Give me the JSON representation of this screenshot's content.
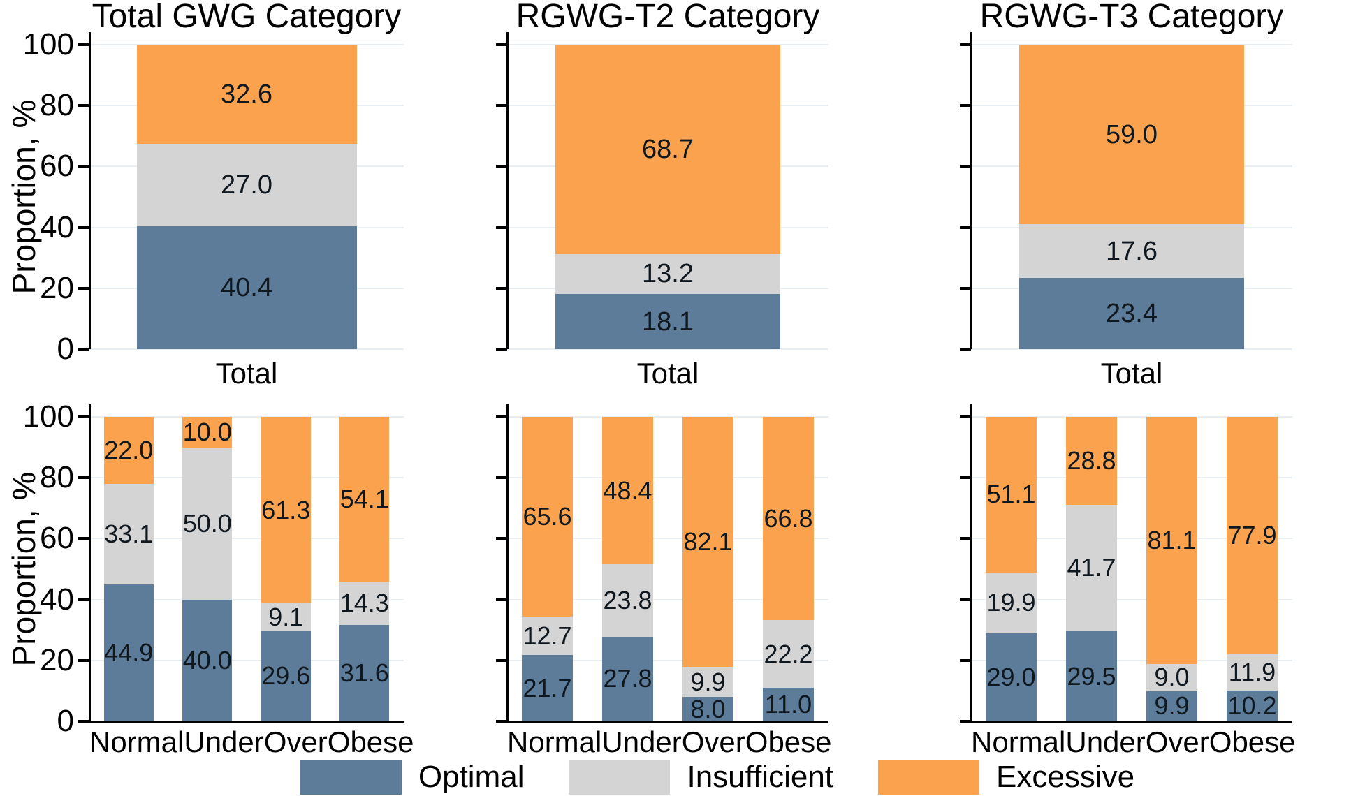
{
  "colors": {
    "optimal": "#5C7C99",
    "insufficient": "#D4D4D4",
    "excessive": "#FBA24E",
    "gridline": "#E8EEF1",
    "axis": "#000000",
    "value_label": "#10181F",
    "background": "#FFFFFF"
  },
  "axis": {
    "ylabel": "Proportion, %",
    "yticks": [
      0,
      20,
      40,
      60,
      80,
      100
    ],
    "ylim": [
      0,
      100
    ],
    "grid": "horizontal"
  },
  "legend": {
    "position": "bottom",
    "items": [
      {
        "label": "Optimal",
        "color": "optimal"
      },
      {
        "label": "Insufficient",
        "color": "insufficient"
      },
      {
        "label": "Excessive",
        "color": "excessive"
      }
    ]
  },
  "chart_data": [
    {
      "type": "bar",
      "stacked": true,
      "title": "Total GWG Category",
      "xlabel": "",
      "ylabel": "Proportion, %",
      "ylim": [
        0,
        100
      ],
      "categories": [
        "Total"
      ],
      "series": [
        {
          "name": "Optimal",
          "color": "optimal",
          "values": [
            40.4
          ]
        },
        {
          "name": "Insufficient",
          "color": "insufficient",
          "values": [
            27.0
          ]
        },
        {
          "name": "Excessive",
          "color": "excessive",
          "values": [
            32.6
          ]
        }
      ]
    },
    {
      "type": "bar",
      "stacked": true,
      "title": "RGWG-T2 Category",
      "xlabel": "",
      "ylabel": "",
      "ylim": [
        0,
        100
      ],
      "categories": [
        "Total"
      ],
      "series": [
        {
          "name": "Optimal",
          "color": "optimal",
          "values": [
            18.1
          ]
        },
        {
          "name": "Insufficient",
          "color": "insufficient",
          "values": [
            13.2
          ]
        },
        {
          "name": "Excessive",
          "color": "excessive",
          "values": [
            68.7
          ]
        }
      ]
    },
    {
      "type": "bar",
      "stacked": true,
      "title": "RGWG-T3 Category",
      "xlabel": "",
      "ylabel": "",
      "ylim": [
        0,
        100
      ],
      "categories": [
        "Total"
      ],
      "series": [
        {
          "name": "Optimal",
          "color": "optimal",
          "values": [
            23.4
          ]
        },
        {
          "name": "Insufficient",
          "color": "insufficient",
          "values": [
            17.6
          ]
        },
        {
          "name": "Excessive",
          "color": "excessive",
          "values": [
            59.0
          ]
        }
      ]
    },
    {
      "type": "bar",
      "stacked": true,
      "title": "",
      "xlabel": "",
      "ylabel": "Proportion, %",
      "ylim": [
        0,
        100
      ],
      "categories": [
        "Normal",
        "Under",
        "Over",
        "Obese"
      ],
      "series": [
        {
          "name": "Optimal",
          "color": "optimal",
          "values": [
            44.9,
            40.0,
            29.6,
            31.6
          ]
        },
        {
          "name": "Insufficient",
          "color": "insufficient",
          "values": [
            33.1,
            50.0,
            9.1,
            14.3
          ]
        },
        {
          "name": "Excessive",
          "color": "excessive",
          "values": [
            22.0,
            10.0,
            61.3,
            54.1
          ]
        }
      ]
    },
    {
      "type": "bar",
      "stacked": true,
      "title": "",
      "xlabel": "",
      "ylabel": "",
      "ylim": [
        0,
        100
      ],
      "categories": [
        "Normal",
        "Under",
        "Over",
        "Obese"
      ],
      "series": [
        {
          "name": "Optimal",
          "color": "optimal",
          "values": [
            21.7,
            27.8,
            8.0,
            11.0
          ]
        },
        {
          "name": "Insufficient",
          "color": "insufficient",
          "values": [
            12.7,
            23.8,
            9.9,
            22.2
          ]
        },
        {
          "name": "Excessive",
          "color": "excessive",
          "values": [
            65.6,
            48.4,
            82.1,
            66.8
          ]
        }
      ]
    },
    {
      "type": "bar",
      "stacked": true,
      "title": "",
      "xlabel": "",
      "ylabel": "",
      "ylim": [
        0,
        100
      ],
      "categories": [
        "Normal",
        "Under",
        "Over",
        "Obese"
      ],
      "series": [
        {
          "name": "Optimal",
          "color": "optimal",
          "values": [
            29.0,
            29.5,
            9.9,
            10.2
          ]
        },
        {
          "name": "Insufficient",
          "color": "insufficient",
          "values": [
            19.9,
            41.7,
            9.0,
            11.9
          ]
        },
        {
          "name": "Excessive",
          "color": "excessive",
          "values": [
            51.1,
            28.8,
            81.1,
            77.9
          ]
        }
      ]
    }
  ]
}
